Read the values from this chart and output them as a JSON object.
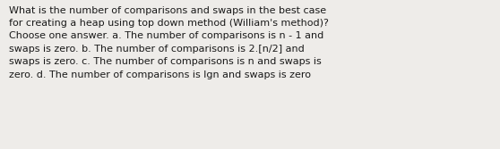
{
  "text": "What is the number of comparisons and swaps in the best case\nfor creating a heap using top down method (William's method)?\nChoose one answer. a. The number of comparisons is n - 1 and\nswaps is zero. b. The number of comparisons is 2.[n/2] and\nswaps is zero. c. The number of comparisons is n and swaps is\nzero. d. The number of comparisons is lgn and swaps is zero",
  "background_color": "#eeece9",
  "text_color": "#1a1a1a",
  "font_size": 8.0,
  "fig_width": 5.58,
  "fig_height": 1.67,
  "dpi": 100
}
